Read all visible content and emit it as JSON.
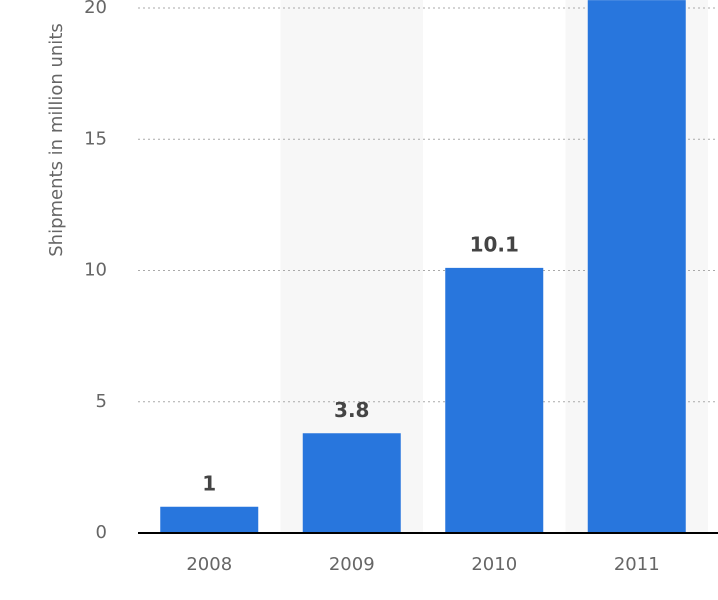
{
  "chart_data": {
    "type": "bar",
    "y_axis_label": "Shipments in million units",
    "categories": [
      "2008",
      "2009",
      "2010",
      "2011"
    ],
    "values": [
      1,
      3.8,
      10.1,
      20.3
    ],
    "color": "#2876dd",
    "ylim": [
      0,
      20.3
    ],
    "yticks": [
      0,
      5,
      10,
      15,
      20
    ],
    "grid": true
  }
}
